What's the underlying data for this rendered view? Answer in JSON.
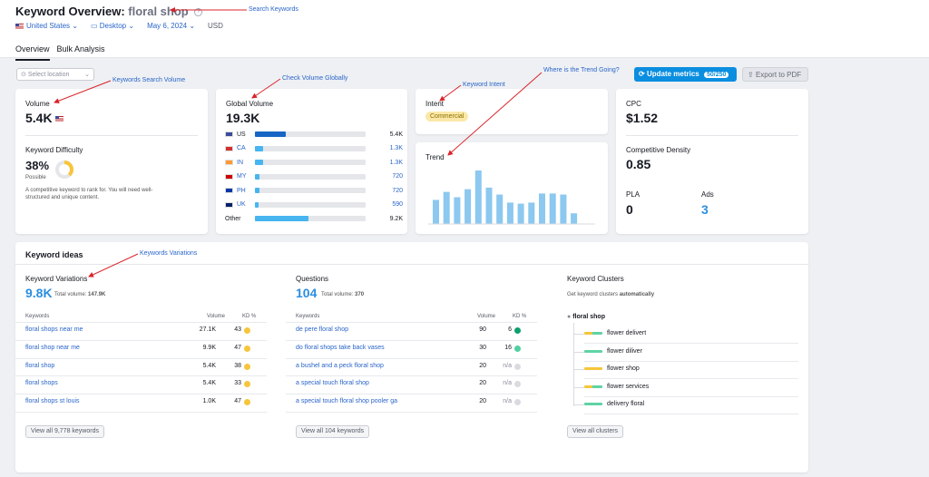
{
  "header": {
    "title_prefix": "Keyword Overview:",
    "keyword": "floral shop",
    "country": "United States",
    "device": "Desktop",
    "date": "May 6, 2024",
    "currency": "USD",
    "tabs": [
      "Overview",
      "Bulk Analysis"
    ]
  },
  "toolbar": {
    "location_placeholder": "Select location",
    "update_label": "Update metrics",
    "update_count": "50/250",
    "export_label": "Export to PDF"
  },
  "volume_card": {
    "label": "Volume",
    "value": "5.4K",
    "kd_label": "Keyword Difficulty",
    "kd_value": "38%",
    "kd_percent": 38,
    "kd_status": "Possible",
    "kd_desc_1": "A competitive keyword to rank for. You will need well-",
    "kd_desc_2": "structured and unique content."
  },
  "global_card": {
    "label": "Global Volume",
    "value": "19.3K",
    "rows": [
      {
        "code": "US",
        "value": "5.4K",
        "share": 0.28
      },
      {
        "code": "CA",
        "value": "1.3K",
        "share": 0.07
      },
      {
        "code": "IN",
        "value": "1.3K",
        "share": 0.07
      },
      {
        "code": "MY",
        "value": "720",
        "share": 0.04
      },
      {
        "code": "PH",
        "value": "720",
        "share": 0.04
      },
      {
        "code": "UK",
        "value": "590",
        "share": 0.03
      },
      {
        "code": "Other",
        "value": "9.2K",
        "share": 0.48
      }
    ]
  },
  "intent_card": {
    "label": "Intent",
    "value": "Commercial"
  },
  "trend_card": {
    "label": "Trend",
    "values": [
      0.45,
      0.6,
      0.5,
      0.65,
      1.0,
      0.68,
      0.55,
      0.4,
      0.38,
      0.4,
      0.57,
      0.57,
      0.55,
      0.2
    ]
  },
  "cpc_card": {
    "cpc_label": "CPC",
    "cpc_value": "$1.52",
    "density_label": "Competitive Density",
    "density_value": "0.85",
    "pla_label": "PLA",
    "pla_value": "0",
    "ads_label": "Ads",
    "ads_value": "3"
  },
  "ideas": {
    "title": "Keyword ideas",
    "variations": {
      "label": "Keyword Variations",
      "value": "9.8K",
      "total_label": "Total volume:",
      "total_value": "147.9K",
      "col_keywords": "Keywords",
      "col_volume": "Volume",
      "col_kd": "KD %",
      "rows": [
        {
          "kw": "floral shops near me",
          "vol": "27.1K",
          "kd": "43",
          "color": "#f7c53b"
        },
        {
          "kw": "floral shop near me",
          "vol": "9.9K",
          "kd": "47",
          "color": "#f7c53b"
        },
        {
          "kw": "floral shop",
          "vol": "5.4K",
          "kd": "38",
          "color": "#f7c53b"
        },
        {
          "kw": "floral shops",
          "vol": "5.4K",
          "kd": "33",
          "color": "#f7c53b"
        },
        {
          "kw": "floral shops st louis",
          "vol": "1.0K",
          "kd": "47",
          "color": "#f7c53b"
        }
      ],
      "view_all": "View all 9,778 keywords"
    },
    "questions": {
      "label": "Questions",
      "value": "104",
      "total_label": "Total volume:",
      "total_value": "370",
      "col_keywords": "Keywords",
      "col_volume": "Volume",
      "col_kd": "KD %",
      "rows": [
        {
          "kw": "de pere floral shop",
          "vol": "90",
          "kd": "6",
          "color": "#0e9f6e"
        },
        {
          "kw": "do floral shops take back vases",
          "vol": "30",
          "kd": "16",
          "color": "#4fd0a0"
        },
        {
          "kw": "a bushel and a peck floral shop",
          "vol": "20",
          "kd": "n/a",
          "color": "#d9dbe0"
        },
        {
          "kw": "a special touch floral shop",
          "vol": "20",
          "kd": "n/a",
          "color": "#d9dbe0"
        },
        {
          "kw": "a special touch floral shop pooler ga",
          "vol": "20",
          "kd": "n/a",
          "color": "#d9dbe0"
        }
      ],
      "view_all": "View all 104 keywords"
    },
    "clusters": {
      "label": "Keyword Clusters",
      "desc": "Get keyword clusters",
      "desc_bold": "automatically",
      "root": "floral shop",
      "items": [
        {
          "name": "flower delivert",
          "color": "#f7c53b",
          "color2": "#5fd3a6"
        },
        {
          "name": "flower diliver",
          "color": "#5fd3a6",
          "color2": "#5fd3a6"
        },
        {
          "name": "flower shop",
          "color": "#f7c53b",
          "color2": "#f7c53b"
        },
        {
          "name": "flower services",
          "color": "#f7c53b",
          "color2": "#5fd3a6"
        },
        {
          "name": "delivery floral",
          "color": "#5fd3a6",
          "color2": "#5fd3a6"
        }
      ],
      "view_all": "View all clusters"
    }
  },
  "annotations": {
    "search_keywords": "Search Keywords",
    "search_volume": "Keywords Search Volume",
    "check_global": "Check Volume Globally",
    "intent": "Keyword Intent",
    "trend": "Where is the Trend Going?",
    "variations": "Keywords Variations"
  },
  "colors": {
    "accent": "#0a8ee0",
    "link": "#2a65c9",
    "arrow": "#d9242b"
  }
}
